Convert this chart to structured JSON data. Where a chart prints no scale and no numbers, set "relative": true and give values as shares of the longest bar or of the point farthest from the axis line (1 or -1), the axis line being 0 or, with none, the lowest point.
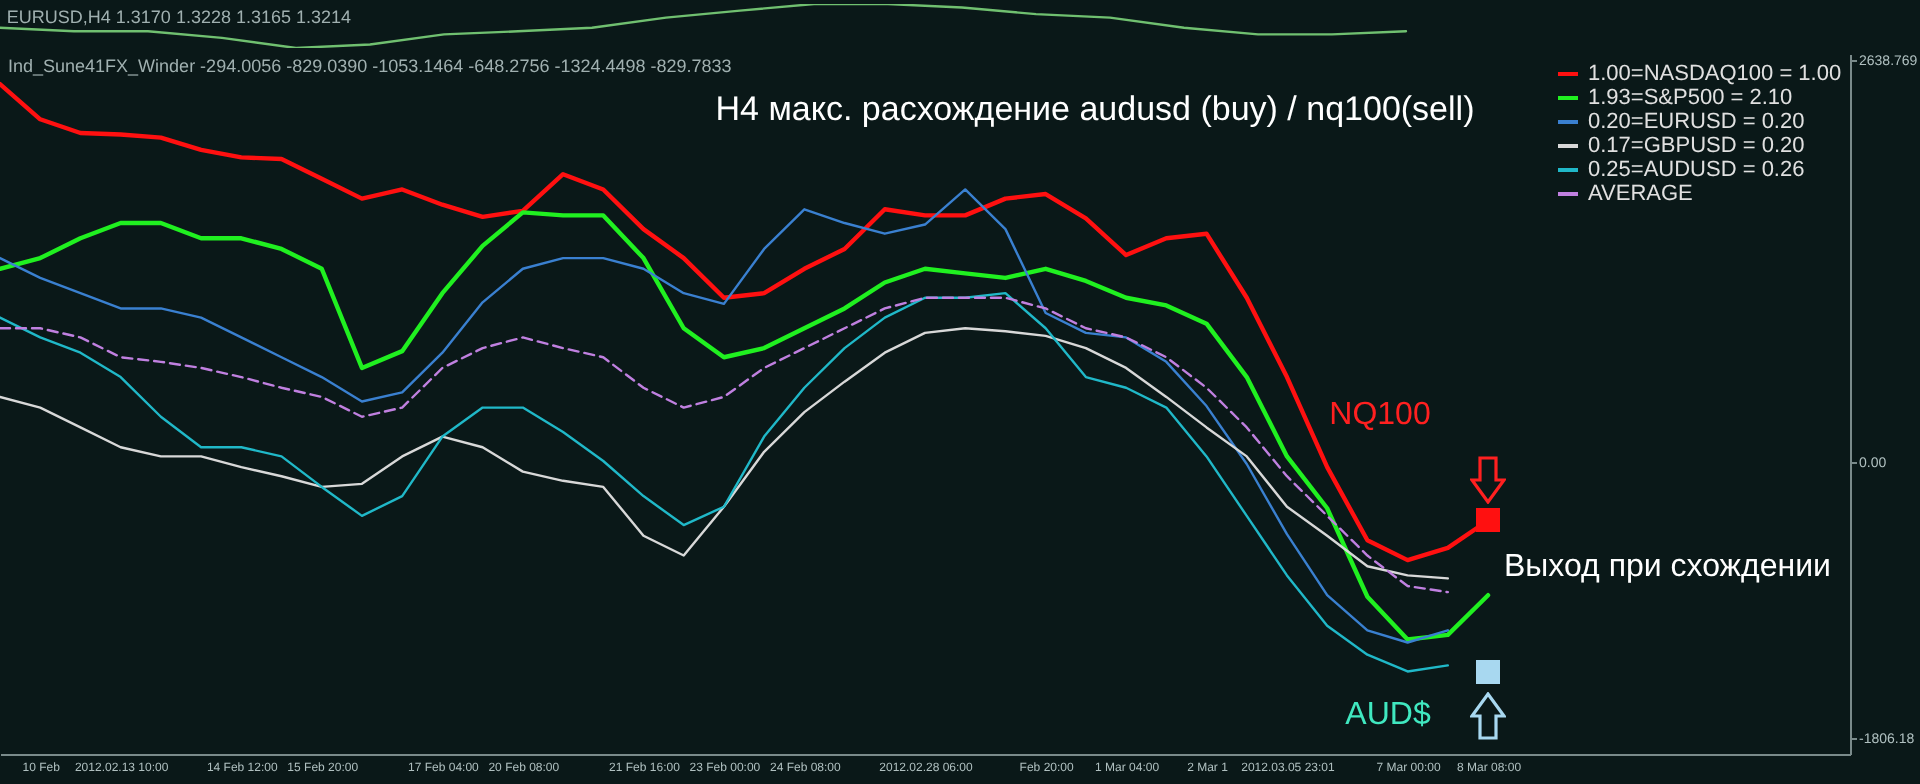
{
  "chart_data": [
    {
      "type": "line",
      "title": "EURUSD,H4  1.3170 1.3228 1.3165 1.3214",
      "relative": true,
      "categories": [
        null,
        null,
        null,
        null,
        null,
        null,
        null,
        null,
        null,
        null,
        null,
        null,
        null,
        null,
        null,
        null,
        null,
        null,
        null,
        null,
        null,
        null,
        null,
        null,
        null,
        null
      ],
      "series": [
        {
          "color": "#70c070",
          "values": [
            0.46,
            0.38,
            0.38,
            0.23,
            0,
            0.08,
            0.31,
            0.38,
            0.46,
            0.69,
            0.85,
            1,
            1,
            0.92,
            0.77,
            0.69,
            0.46,
            0.31,
            0.31,
            0.38,
            null,
            null,
            null,
            null,
            null,
            null
          ]
        }
      ]
    },
    {
      "type": "line",
      "title": "H4 макс. расхождение audusd (buy) / nq100(sell)",
      "annotations": [
        "Ind_Sune41FX_Winder -294.0056 -829.0390 -1053.1464 -648.2756 -1324.4498 -829.7833",
        "NQ100",
        "Выход при схождении",
        "AUD$"
      ],
      "categories": [
        null,
        "10 Feb",
        null,
        "2012.02.13 10:00",
        null,
        null,
        "14 Feb 12:00",
        null,
        "15 Feb 20:00",
        null,
        null,
        "17 Feb 04:00",
        null,
        "20 Feb 08:00",
        null,
        null,
        "21 Feb 16:00",
        null,
        "23 Feb 00:00",
        null,
        "24 Feb 08:00",
        null,
        null,
        "2012.02.28 06:00",
        null,
        null,
        "Feb 20:00",
        null,
        "1 Mar 04:00",
        null,
        "2 Mar 1",
        null,
        "2012.03.05 23:01",
        null,
        null,
        "7 Mar 00:00",
        null,
        "8 Mar 08:00",
        null,
        null,
        null,
        null,
        null,
        null,
        null,
        null,
        null
      ],
      "ylim": [
        -1911,
        2678
      ],
      "yticks": [
        {
          "value": 2638.769,
          "label": "2638.769"
        },
        {
          "value": 0,
          "label": "0.00"
        },
        {
          "value": -1806.18,
          "label": "-1806.18"
        }
      ],
      "legend": "top right",
      "marker": "none",
      "series": [
        {
          "name": "1.00=NASDAQ100 = 1.00",
          "color": "#ff1010",
          "values": [
            2480,
            2250,
            2160,
            2150,
            2130,
            2050,
            2000,
            1990,
            1860,
            1730,
            1790,
            1690,
            1610,
            1650,
            1890,
            1790,
            1530,
            1340,
            1080,
            1110,
            1270,
            1400,
            1660,
            1620,
            1620,
            1730,
            1760,
            1600,
            1360,
            1470,
            1500,
            1080,
            560,
            -30,
            -510,
            -640,
            -560,
            -380,
            null,
            null,
            null,
            null,
            null,
            null,
            null,
            null,
            null
          ]
        },
        {
          "name": "1.93=S&P500 = 2.10",
          "color": "#20f020",
          "values": [
            1270,
            1340,
            1470,
            1570,
            1570,
            1470,
            1470,
            1400,
            1270,
            620,
            730,
            1110,
            1420,
            1640,
            1620,
            1620,
            1340,
            880,
            690,
            750,
            880,
            1010,
            1180,
            1270,
            1240,
            1210,
            1270,
            1190,
            1080,
            1030,
            910,
            560,
            40,
            -300,
            -880,
            -1160,
            -1130,
            -870,
            null,
            null,
            null,
            null,
            null,
            null,
            null,
            null,
            null
          ]
        },
        {
          "name": "0.20=EURUSD = 0.20",
          "color": "#3a80d0",
          "values": [
            1340,
            1210,
            1110,
            1010,
            1010,
            950,
            820,
            690,
            560,
            400,
            460,
            720,
            1050,
            1270,
            1340,
            1340,
            1270,
            1110,
            1040,
            1400,
            1660,
            1570,
            1500,
            1560,
            1790,
            1530,
            980,
            850,
            820,
            660,
            370,
            -10,
            -470,
            -870,
            -1100,
            -1180,
            -1100,
            null,
            null,
            null,
            null,
            null,
            null,
            null,
            null,
            null,
            null
          ]
        },
        {
          "name": "0.17=GBPUSD = 0.20",
          "color": "#d8d8d8",
          "values": [
            430,
            360,
            230,
            100,
            40,
            40,
            -30,
            -90,
            -160,
            -140,
            40,
            170,
            100,
            -60,
            -120,
            -160,
            -480,
            -610,
            -290,
            70,
            330,
            530,
            720,
            850,
            880,
            860,
            830,
            750,
            620,
            430,
            230,
            40,
            -290,
            -480,
            -680,
            -740,
            -760,
            null,
            null,
            null,
            null,
            null,
            null,
            null,
            null,
            null,
            null
          ]
        },
        {
          "name": "0.25=AUDUSD = 0.26",
          "color": "#20b8c8",
          "values": [
            950,
            820,
            720,
            560,
            300,
            100,
            100,
            40,
            -160,
            -350,
            -220,
            170,
            360,
            360,
            200,
            10,
            -220,
            -410,
            -290,
            170,
            490,
            750,
            950,
            1080,
            1080,
            1110,
            880,
            560,
            490,
            360,
            40,
            -350,
            -740,
            -1070,
            -1260,
            -1370,
            -1330,
            null,
            null,
            null,
            null,
            null,
            null,
            null,
            null,
            null,
            null
          ]
        },
        {
          "name": "AVERAGE",
          "color": "#c080e0",
          "line_style": "dashed",
          "values": [
            880,
            880,
            820,
            690,
            660,
            620,
            560,
            490,
            430,
            300,
            360,
            620,
            750,
            820,
            750,
            690,
            490,
            360,
            430,
            620,
            750,
            880,
            1010,
            1080,
            1080,
            1080,
            1010,
            880,
            820,
            690,
            490,
            230,
            -90,
            -350,
            -610,
            -810,
            -850,
            null,
            null,
            null,
            null,
            null,
            null,
            null,
            null,
            null,
            null
          ]
        }
      ]
    }
  ]
}
